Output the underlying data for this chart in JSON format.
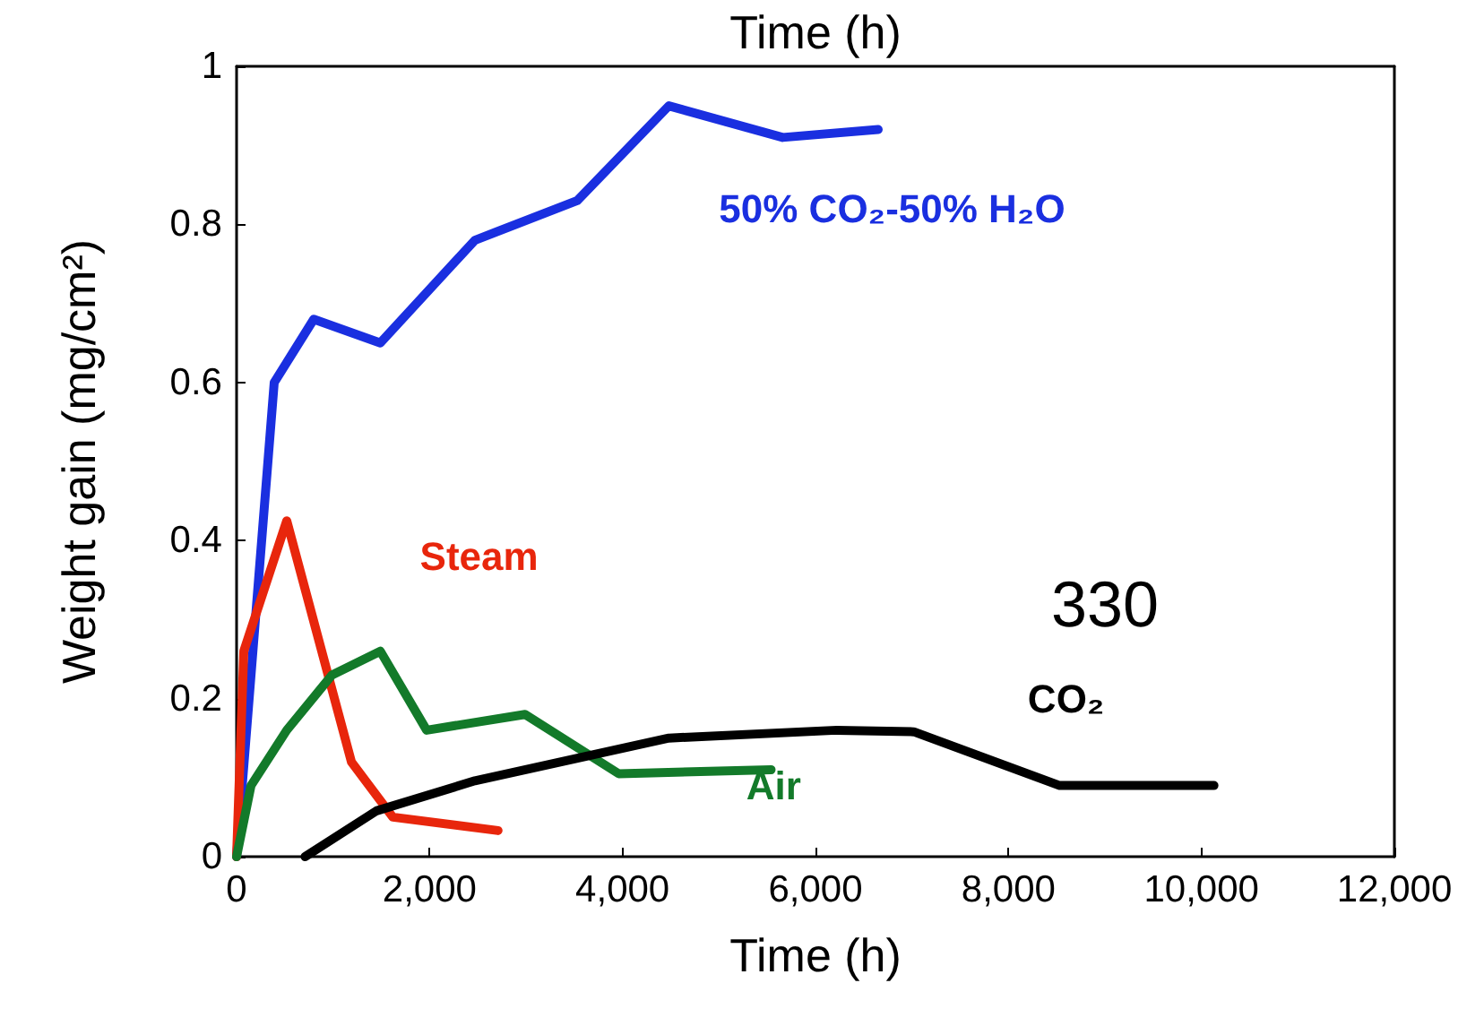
{
  "chart_data": {
    "type": "line",
    "x2label": "Time (h)",
    "xlabel": "Time (h)",
    "ylabel": "Weight gain (mg/cm²)",
    "xlim": [
      0,
      12000
    ],
    "xticks": [
      0,
      {
        "value": 2000,
        "label": "2,000"
      },
      {
        "value": 4000,
        "label": "4,000"
      },
      {
        "value": 6000,
        "label": "6,000"
      },
      {
        "value": 8000,
        "label": "8,000"
      },
      {
        "value": 10000,
        "label": "10,000"
      },
      {
        "value": 12000,
        "label": "12,000"
      }
    ],
    "ylim": [
      0,
      1
    ],
    "yticks": [
      0,
      0.2,
      0.4,
      0.6,
      0.8,
      1
    ],
    "grid": false,
    "legend": false,
    "marker": "none",
    "line_style": "solid",
    "annotations": [
      "330"
    ],
    "series": [
      {
        "name": "50% CO₂-50% H₂O",
        "color": "#1a2fe0",
        "x": [
          0,
          390,
          800,
          1490,
          2470,
          3530,
          4480,
          5660,
          6650
        ],
        "values": [
          0,
          0.6,
          0.68,
          0.65,
          0.78,
          0.83,
          0.95,
          0.91,
          0.92
        ]
      },
      {
        "name": "Steam",
        "color": "#e8260c",
        "x": [
          0,
          75,
          520,
          1190,
          1620,
          2710
        ],
        "values": [
          0,
          0.26,
          0.425,
          0.12,
          0.05,
          0.033
        ]
      },
      {
        "name": "Air",
        "color": "#137a2a",
        "x": [
          0,
          150,
          520,
          990,
          1490,
          1970,
          2990,
          3960,
          5540
        ],
        "values": [
          0,
          0.09,
          0.16,
          0.23,
          0.26,
          0.16,
          0.18,
          0.105,
          0.11
        ]
      },
      {
        "name": "CO₂",
        "color": "#000000",
        "x": [
          710,
          1450,
          2470,
          4480,
          6220,
          7020,
          8530,
          10130
        ],
        "values": [
          0,
          0.058,
          0.096,
          0.15,
          0.16,
          0.158,
          0.09,
          0.09
        ]
      }
    ]
  }
}
